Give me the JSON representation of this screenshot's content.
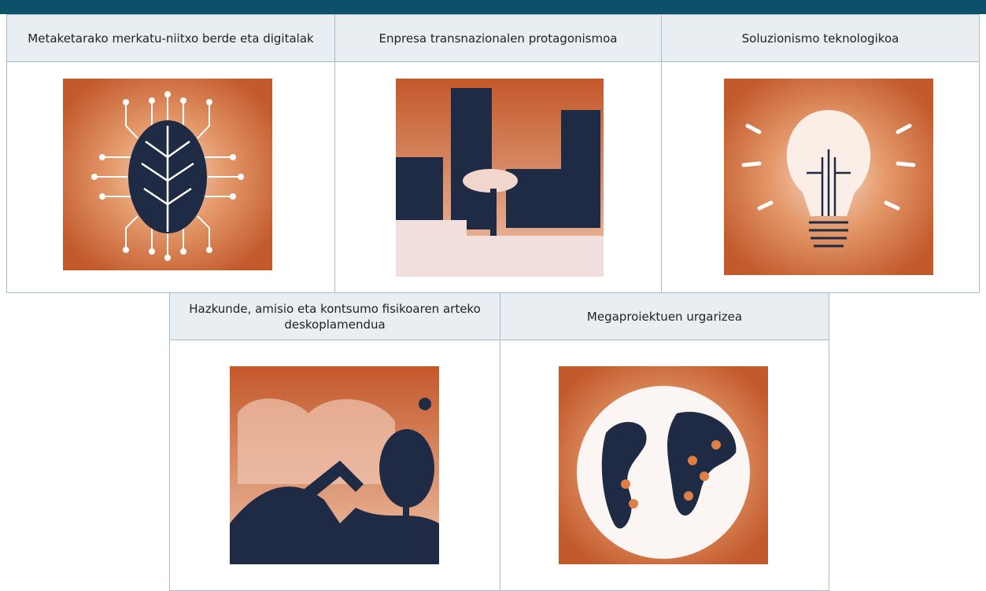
{
  "table": {
    "rows": [
      [
        "Metaketarako merkatu-niitxo berde eta digitalak",
        "Enpresa transnazionalen protagonismoa",
        "Soluzionismo teknologikoa"
      ],
      [
        "Hazkunde, amisio eta kontsumo fisikoaren arteko deskoplamendua",
        "Megaproiektuen urgarizea"
      ]
    ]
  }
}
